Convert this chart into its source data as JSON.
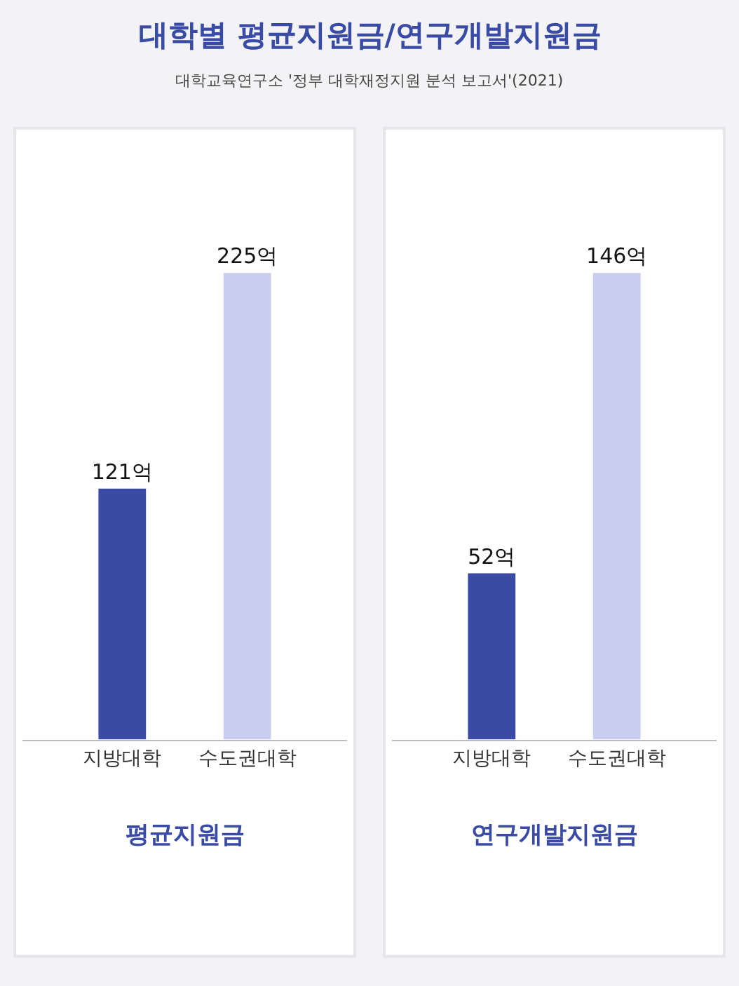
{
  "chart_data": [
    {
      "type": "bar",
      "title": "대학별 평균지원금/연구개발지원금",
      "annotations": [
        "대학교육연구소 '정부 대학재정지원 분석 보고서'(2021)"
      ],
      "xlabel": "평균지원금",
      "categories": [
        "지방대학",
        "수도권대학"
      ],
      "values": [
        121,
        225
      ],
      "colors": [
        "#3a4ba6",
        "#c9cdee"
      ],
      "value_labels": [
        "121억",
        "225억"
      ]
    },
    {
      "type": "bar",
      "xlabel": "연구개발지원금",
      "categories": [
        "지방대학",
        "수도권대학"
      ],
      "values": [
        52,
        146
      ],
      "colors": [
        "#3a4ba6",
        "#c9cdee"
      ],
      "value_labels": [
        "52억",
        "146억"
      ]
    }
  ]
}
